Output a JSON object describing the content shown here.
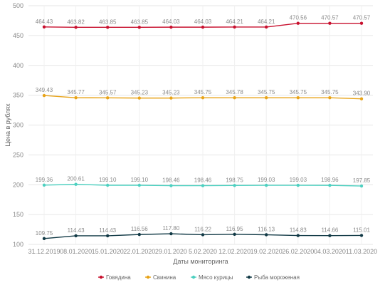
{
  "chart_data": {
    "type": "line",
    "xlabel": "Даты мониторинга",
    "ylabel": "Цена в рублях",
    "ylim": [
      100,
      500
    ],
    "yticks": [
      100,
      150,
      200,
      250,
      300,
      350,
      400,
      450,
      500
    ],
    "grid": "horizontal",
    "legend_position": "bottom",
    "categories": [
      "31.12.2019",
      "08.01.2020",
      "15.01.2020",
      "22.01.2020",
      "29.01.2020",
      "5.02.2020",
      "12.02.2020",
      "19.02.2020",
      "26.02.2020",
      "04.03.2020",
      "11.03.2020"
    ],
    "series": [
      {
        "name": "Говядина",
        "color": "#c8102e",
        "values": [
          464.43,
          463.82,
          463.85,
          463.85,
          464.03,
          464.03,
          464.21,
          464.21,
          470.56,
          470.57,
          470.57
        ],
        "labels": [
          "464.43",
          "463.82",
          "463.85",
          "463.85",
          "464.03",
          "464.03",
          "464.21",
          "464.21",
          "470.56",
          "470.57",
          "470.57"
        ]
      },
      {
        "name": "Свинина",
        "color": "#e8a317",
        "values": [
          349.43,
          345.77,
          345.57,
          345.23,
          345.23,
          345.75,
          345.78,
          345.75,
          345.75,
          345.75,
          343.9
        ],
        "labels": [
          "349.43",
          "345.77",
          "345.57",
          "345.23",
          "345.23",
          "345.75",
          "345.78",
          "345.75",
          "345.75",
          "345.75",
          "343.90"
        ]
      },
      {
        "name": "Мясо курицы",
        "color": "#4dd0c0",
        "values": [
          199.36,
          200.61,
          199.1,
          199.1,
          198.46,
          198.46,
          198.75,
          199.03,
          199.03,
          198.96,
          197.85
        ],
        "labels": [
          "199.36",
          "200.61",
          "199.10",
          "199.10",
          "198.46",
          "198.46",
          "198.75",
          "199.03",
          "199.03",
          "198.96",
          "197.85"
        ]
      },
      {
        "name": "Рыба мороженая",
        "color": "#123a46",
        "values": [
          109.75,
          114.43,
          114.43,
          116.56,
          117.8,
          116.22,
          116.95,
          116.13,
          114.83,
          114.66,
          115.01
        ],
        "labels": [
          "109.75",
          "114.43",
          "114.43",
          "116.56",
          "117.80",
          "116.22",
          "116.95",
          "116.13",
          "114.83",
          "114.66",
          "115.01"
        ]
      }
    ]
  }
}
